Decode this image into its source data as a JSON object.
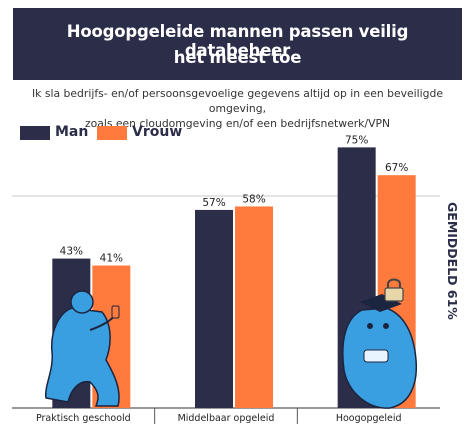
{
  "title_lines": [
    "Hoogopgeleide mannen passen veilig databeheer",
    "het meest toe"
  ],
  "subtitle_lines": [
    "Ik sla bedrijfs- en/of persoonsgevoelige gegevens altijd op in een beveiligde omgeving,",
    "zoals een cloudomgeving en/of een bedrijfsnetwerk/VPN"
  ],
  "colors": {
    "man": "#2b2d49",
    "vrouw": "#ff7a3c",
    "banner": "#2b2d49",
    "mascot": "#3a9fe0"
  },
  "icons": [
    "person-with-phone-illustration",
    "graduate-mascot-illustration",
    "padlock-icon"
  ],
  "chart_data": {
    "type": "bar",
    "categories": [
      "Praktisch geschoold",
      "Middelbaar opgeleid",
      "Hoogopgeleid"
    ],
    "series": [
      {
        "name": "Man",
        "values": [
          43,
          57,
          75
        ],
        "labels": [
          "43%",
          "57%",
          "75%"
        ]
      },
      {
        "name": "Vrouw",
        "values": [
          41,
          58,
          67
        ],
        "labels": [
          "41%",
          "58%",
          "67%"
        ]
      }
    ],
    "ylim": [
      0,
      80
    ],
    "average": {
      "value": 61,
      "label": "GEMIDDELD 61%"
    },
    "legend_position": "top-left",
    "grid": true
  }
}
